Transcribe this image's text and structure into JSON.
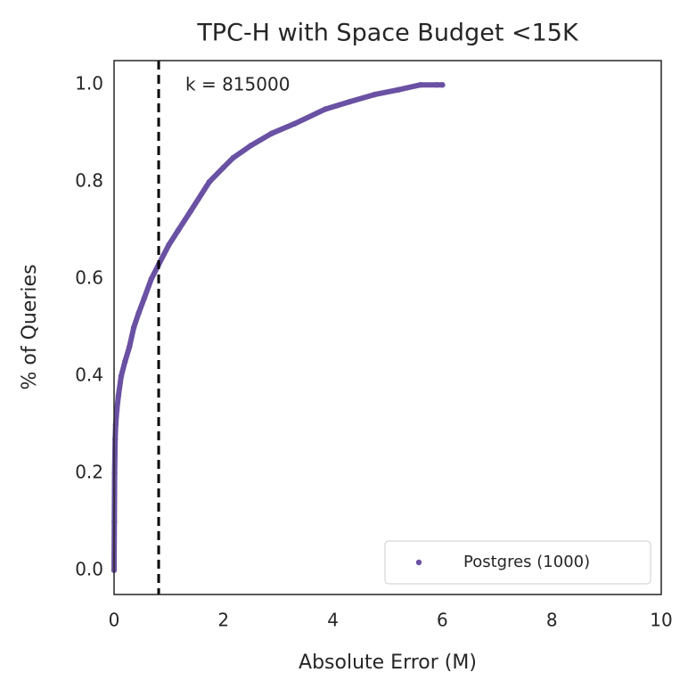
{
  "chart_data": {
    "type": "scatter",
    "title": "TPC-H with Space Budget <15K",
    "x_label": "Absolute Error (M)",
    "y_label": "% of Queries",
    "annotation": "k = 815000",
    "vline": 0.815,
    "xlim": [
      0,
      10
    ],
    "ylim": [
      -0.05,
      1.05
    ],
    "xticks": [
      0,
      2,
      4,
      6,
      8,
      10
    ],
    "yticks": [
      {
        "value": 0,
        "label": "0.0"
      },
      {
        "value": 0.2,
        "label": "0.2"
      },
      {
        "value": 0.4,
        "label": "0.4"
      },
      {
        "value": 0.6,
        "label": "0.6"
      },
      {
        "value": 0.8,
        "label": "0.8"
      },
      {
        "value": 1,
        "label": "1.0"
      }
    ],
    "grid": false,
    "legend": "lower right",
    "series": [
      {
        "name": "Postgres (1000)",
        "color": "#6a51a3",
        "x": [
          0,
          0.005,
          0.01,
          0.02,
          0.03,
          0.05,
          0.08,
          0.13,
          0.2,
          0.28,
          0.36,
          0.45,
          0.55,
          0.68,
          0.815,
          1.0,
          1.17,
          1.4,
          1.74,
          2.0,
          2.18,
          2.5,
          2.88,
          3.3,
          3.86,
          4.3,
          4.76,
          5.2,
          5.6,
          5.9,
          6.0
        ],
        "values": [
          0,
          0.1,
          0.2,
          0.27,
          0.3,
          0.33,
          0.36,
          0.4,
          0.43,
          0.46,
          0.5,
          0.53,
          0.56,
          0.6,
          0.63,
          0.67,
          0.7,
          0.74,
          0.8,
          0.83,
          0.85,
          0.875,
          0.9,
          0.92,
          0.95,
          0.965,
          0.98,
          0.99,
          1.0,
          1.0,
          1.0
        ]
      }
    ]
  }
}
